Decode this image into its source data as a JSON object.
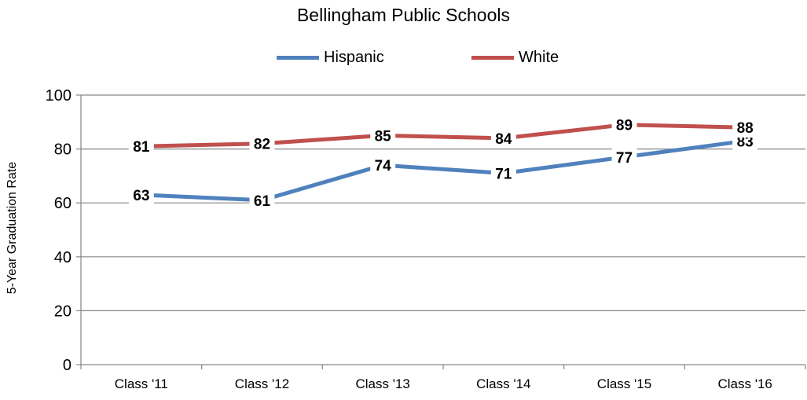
{
  "chart_data": {
    "type": "line",
    "title": "Bellingham Public Schools",
    "xlabel": "",
    "ylabel": "5-Year Graduation Rate",
    "categories": [
      "Class '11",
      "Class '12",
      "Class '13",
      "Class '14",
      "Class '15",
      "Class '16"
    ],
    "ylim": [
      0,
      100
    ],
    "yticks": [
      0,
      20,
      40,
      60,
      80,
      100
    ],
    "grid": true,
    "legend_position": "top",
    "series": [
      {
        "name": "Hispanic",
        "color": "#4f81bd",
        "values": [
          63,
          61,
          74,
          71,
          77,
          83
        ]
      },
      {
        "name": "White",
        "color": "#c0504d",
        "values": [
          81,
          82,
          85,
          84,
          89,
          88
        ]
      }
    ]
  }
}
